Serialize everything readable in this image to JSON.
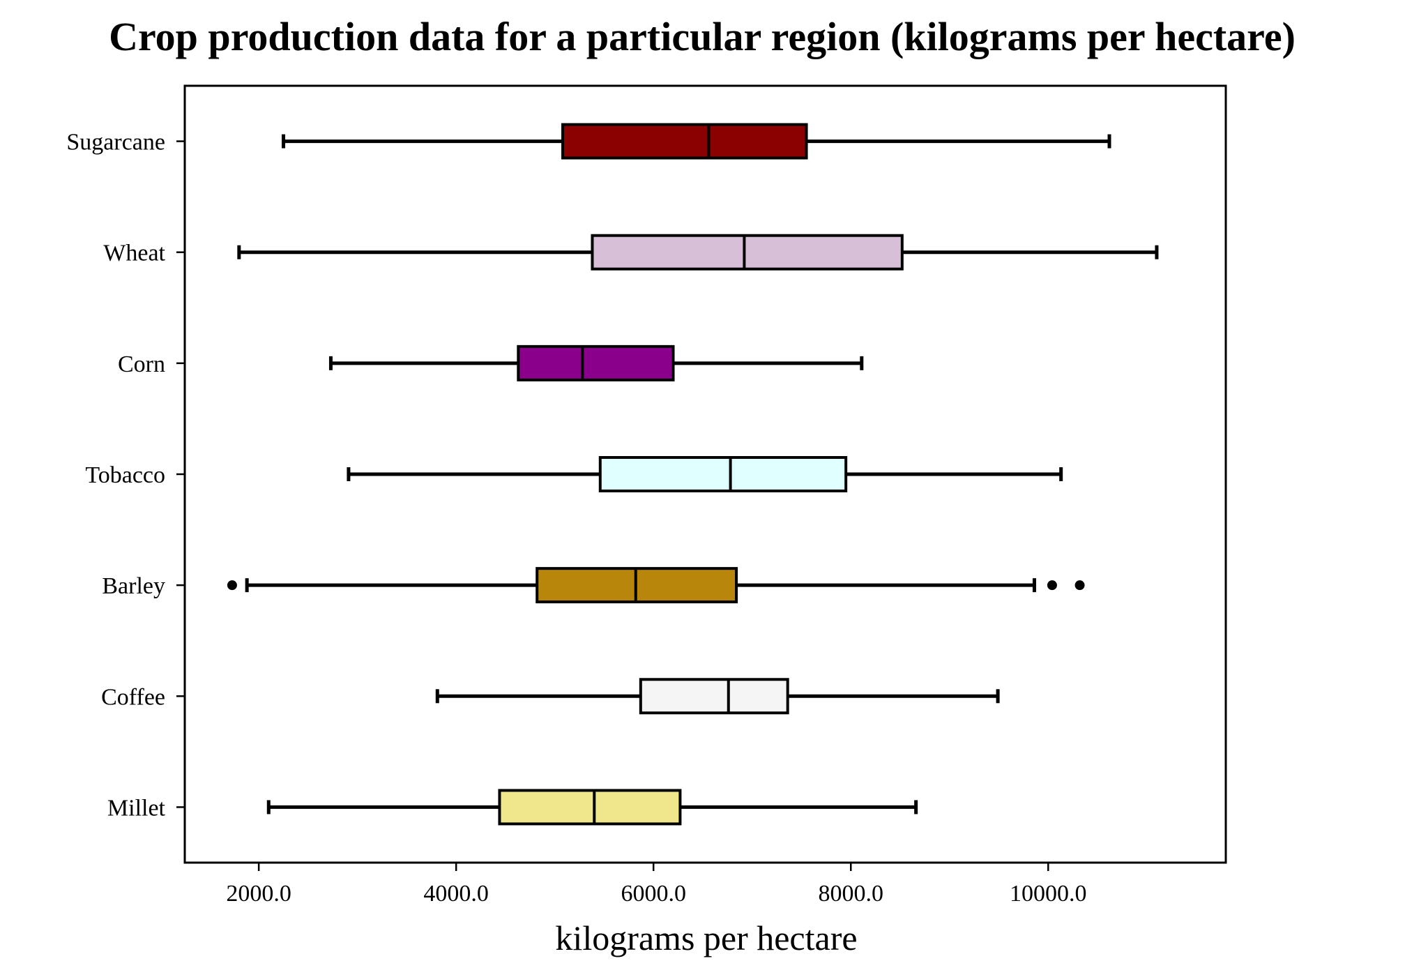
{
  "chart_data": {
    "type": "boxplot",
    "orientation": "horizontal",
    "title": "Crop production data for a particular region (kilograms per hectare)",
    "xlabel": "kilograms per hectare",
    "ylabel": "",
    "xlim": [
      1250,
      11800
    ],
    "xticks": [
      2000,
      4000,
      6000,
      8000,
      10000
    ],
    "xtick_labels": [
      "2000.0",
      "4000.0",
      "6000.0",
      "8000.0",
      "10000.0"
    ],
    "grid": false,
    "categories": [
      "Sugarcane",
      "Wheat",
      "Corn",
      "Tobacco",
      "Barley",
      "Coffee",
      "Millet"
    ],
    "boxes": [
      {
        "label": "Sugarcane",
        "color": "#8b0000",
        "whisker_low": 2250,
        "q1": 5080,
        "median": 6560,
        "q3": 7550,
        "whisker_high": 10620,
        "outliers": []
      },
      {
        "label": "Wheat",
        "color": "#d8bfd8",
        "whisker_low": 1800,
        "q1": 5380,
        "median": 6920,
        "q3": 8520,
        "whisker_high": 11100,
        "outliers": []
      },
      {
        "label": "Corn",
        "color": "#8b008b",
        "whisker_low": 2730,
        "q1": 4630,
        "median": 5280,
        "q3": 6200,
        "whisker_high": 8110,
        "outliers": []
      },
      {
        "label": "Tobacco",
        "color": "#e0ffff",
        "whisker_low": 2910,
        "q1": 5460,
        "median": 6780,
        "q3": 7950,
        "whisker_high": 10130,
        "outliers": []
      },
      {
        "label": "Barley",
        "color": "#b8860b",
        "whisker_low": 1880,
        "q1": 4820,
        "median": 5820,
        "q3": 6840,
        "whisker_high": 9860,
        "outliers": [
          1730,
          10040,
          10320
        ]
      },
      {
        "label": "Coffee",
        "color": "#f5f5f5",
        "whisker_low": 3810,
        "q1": 5870,
        "median": 6760,
        "q3": 7360,
        "whisker_high": 9490,
        "outliers": []
      },
      {
        "label": "Millet",
        "color": "#f0e68c",
        "whisker_low": 2100,
        "q1": 4440,
        "median": 5400,
        "q3": 6270,
        "whisker_high": 8660,
        "outliers": []
      }
    ]
  }
}
